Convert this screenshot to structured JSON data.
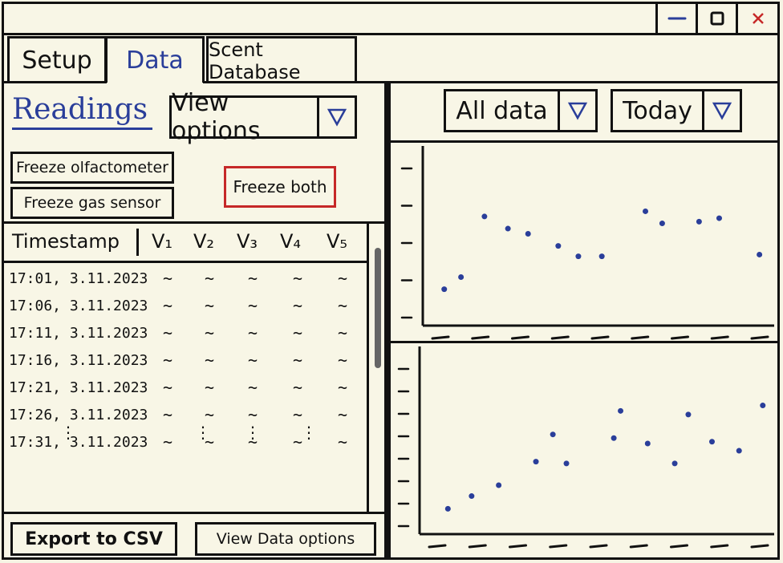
{
  "window": {
    "controls": {
      "minimize": "—",
      "maximize": "▢",
      "close": "x"
    }
  },
  "tabs": [
    {
      "label": "Setup"
    },
    {
      "label": "Data"
    },
    {
      "label": "Scent Database"
    }
  ],
  "left": {
    "title": "Readings",
    "view_options": "View options",
    "freeze_olfactometer": "Freeze  olfactometer",
    "freeze_gas_sensor": "Freeze  gas sensor",
    "freeze_both": "Freeze  both",
    "table": {
      "headers": [
        "Timestamp",
        "V₁",
        "V₂",
        "V₃",
        "V₄",
        "V₅"
      ],
      "rows": [
        {
          "ts": "17:01, 3.11.2023",
          "v": [
            "~",
            "~",
            "~",
            "~",
            "~"
          ]
        },
        {
          "ts": "17:06, 3.11.2023",
          "v": [
            "~",
            "~",
            "~",
            "~",
            "~"
          ]
        },
        {
          "ts": "17:11, 3.11.2023",
          "v": [
            "~",
            "~",
            "~",
            "~",
            "~"
          ]
        },
        {
          "ts": "17:16, 3.11.2023",
          "v": [
            "~",
            "~",
            "~",
            "~",
            "~"
          ]
        },
        {
          "ts": "17:21, 3.11.2023",
          "v": [
            "~",
            "~",
            "~",
            "~",
            "~"
          ]
        },
        {
          "ts": "17:26, 3.11.2023",
          "v": [
            "~",
            "~",
            "~",
            "~",
            "~"
          ]
        },
        {
          "ts": "17:31, 3.11.2023",
          "v": [
            "~",
            "~",
            "~",
            "~",
            "~"
          ]
        }
      ],
      "more": "⋮"
    },
    "export": "Export to CSV",
    "view_data_options": "View Data options"
  },
  "right": {
    "data_filter": "All data",
    "time_filter": "Today",
    "chart_data": [
      {
        "type": "scatter",
        "title": "",
        "xlabel": "",
        "ylabel": "",
        "xlim": [
          0,
          10
        ],
        "ylim": [
          0,
          10
        ],
        "grid": false,
        "series": [
          {
            "points": [
              [
                0.4,
                2.1
              ],
              [
                0.9,
                2.8
              ],
              [
                1.6,
                6.3
              ],
              [
                2.3,
                5.6
              ],
              [
                2.9,
                5.3
              ],
              [
                3.8,
                4.6
              ],
              [
                4.4,
                4.0
              ],
              [
                5.1,
                4.0
              ],
              [
                6.4,
                6.6
              ],
              [
                6.9,
                5.9
              ],
              [
                8.0,
                6.0
              ],
              [
                8.6,
                6.2
              ],
              [
                9.8,
                4.1
              ]
            ]
          }
        ]
      },
      {
        "type": "scatter",
        "title": "",
        "xlabel": "",
        "ylabel": "",
        "xlim": [
          0,
          10
        ],
        "ylim": [
          0,
          10
        ],
        "grid": false,
        "series": [
          {
            "points": [
              [
                0.6,
                1.4
              ],
              [
                1.3,
                2.1
              ],
              [
                2.1,
                2.7
              ],
              [
                3.2,
                4.0
              ],
              [
                3.7,
                5.5
              ],
              [
                4.1,
                3.9
              ],
              [
                5.5,
                5.3
              ],
              [
                5.7,
                6.8
              ],
              [
                6.5,
                5.0
              ],
              [
                7.3,
                3.9
              ],
              [
                7.7,
                6.6
              ],
              [
                8.4,
                5.1
              ],
              [
                9.2,
                4.6
              ],
              [
                9.9,
                7.1
              ]
            ]
          }
        ]
      }
    ]
  },
  "colors": {
    "accent": "#2a3e9a",
    "alert": "#c62828",
    "ink": "#111111",
    "paper": "#f8f6e6"
  }
}
